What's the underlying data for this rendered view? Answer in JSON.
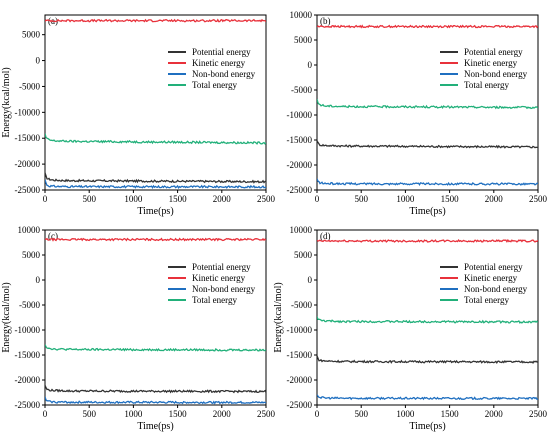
{
  "figure": {
    "panels": [
      {
        "id": "a",
        "label": "(a)"
      },
      {
        "id": "b",
        "label": "(b)"
      },
      {
        "id": "c",
        "label": "(c)"
      },
      {
        "id": "d",
        "label": "(d)"
      }
    ]
  },
  "chart_data": [
    {
      "type": "line",
      "panel": "(a)",
      "xlabel": "Time(ps)",
      "ylabel": "Energy(kcal/mol)",
      "xlim": [
        0,
        2500
      ],
      "ylim": [
        -25000,
        8800
      ],
      "xticks": [
        "0",
        "500",
        "1000",
        "1500",
        "2000",
        "2500"
      ],
      "yticks": [
        "-25000",
        "-20000",
        "-15000",
        "-10000",
        "-5000",
        "0",
        "5000"
      ],
      "ytick_values": [
        -25000,
        -20000,
        -15000,
        -10000,
        -5000,
        0,
        5000
      ],
      "legend_position": "right-middle",
      "series": [
        {
          "name": "Potential energy",
          "color": "#333333",
          "x": [
            0,
            15,
            40,
            100,
            300,
            2500
          ],
          "y": [
            -21800,
            -22600,
            -22900,
            -23100,
            -23200,
            -23400
          ]
        },
        {
          "name": "Kinetic energy",
          "color": "#e8313b",
          "x": [
            0,
            2500
          ],
          "y": [
            7700,
            7700
          ]
        },
        {
          "name": "Non-bond energy",
          "color": "#1f6fc0",
          "x": [
            0,
            15,
            40,
            100,
            300,
            2500
          ],
          "y": [
            -23000,
            -23900,
            -24200,
            -24300,
            -24350,
            -24400
          ]
        },
        {
          "name": "Total energy",
          "color": "#22b07a",
          "x": [
            0,
            15,
            40,
            100,
            300,
            2500
          ],
          "y": [
            -14200,
            -15000,
            -15300,
            -15500,
            -15600,
            -15900
          ]
        }
      ]
    },
    {
      "type": "line",
      "panel": "(b)",
      "xlabel": "Time(ps)",
      "ylabel": "",
      "xlim": [
        0,
        2500
      ],
      "ylim": [
        -25000,
        10000
      ],
      "xticks": [
        "0",
        "500",
        "1000",
        "1500",
        "2000",
        "2500"
      ],
      "yticks": [
        "-25000",
        "-20000",
        "-15000",
        "-10000",
        "-5000",
        "0",
        "5000",
        "10000"
      ],
      "ytick_values": [
        -25000,
        -20000,
        -15000,
        -10000,
        -5000,
        0,
        5000,
        10000
      ],
      "legend_position": "right-middle",
      "series": [
        {
          "name": "Potential energy",
          "color": "#333333",
          "x": [
            0,
            15,
            40,
            100,
            300,
            2500
          ],
          "y": [
            -15000,
            -15800,
            -16000,
            -16100,
            -16200,
            -16400
          ]
        },
        {
          "name": "Kinetic energy",
          "color": "#e8313b",
          "x": [
            0,
            2500
          ],
          "y": [
            7700,
            7700
          ]
        },
        {
          "name": "Non-bond energy",
          "color": "#1f6fc0",
          "x": [
            0,
            15,
            40,
            100,
            300,
            2500
          ],
          "y": [
            -22800,
            -23400,
            -23600,
            -23700,
            -23750,
            -23800
          ]
        },
        {
          "name": "Total energy",
          "color": "#22b07a",
          "x": [
            0,
            15,
            40,
            100,
            300,
            2500
          ],
          "y": [
            -7000,
            -7700,
            -8000,
            -8200,
            -8300,
            -8500
          ]
        }
      ]
    },
    {
      "type": "line",
      "panel": "(c)",
      "xlabel": "Time(ps)",
      "ylabel": "Energy(kcal/mol)",
      "xlim": [
        0,
        2500
      ],
      "ylim": [
        -25000,
        10000
      ],
      "xticks": [
        "0",
        "500",
        "1000",
        "1500",
        "2000",
        "2500"
      ],
      "yticks": [
        "-25000",
        "-20000",
        "-15000",
        "-10000",
        "-5000",
        "0",
        "5000",
        "10000"
      ],
      "ytick_values": [
        -25000,
        -20000,
        -15000,
        -10000,
        -5000,
        0,
        5000,
        10000
      ],
      "legend_position": "right-middle",
      "series": [
        {
          "name": "Potential energy",
          "color": "#333333",
          "x": [
            0,
            15,
            40,
            100,
            300,
            2500
          ],
          "y": [
            -21000,
            -21800,
            -22000,
            -22100,
            -22200,
            -22300
          ]
        },
        {
          "name": "Kinetic energy",
          "color": "#e8313b",
          "x": [
            0,
            2500
          ],
          "y": [
            8100,
            8100
          ]
        },
        {
          "name": "Non-bond energy",
          "color": "#1f6fc0",
          "x": [
            0,
            15,
            40,
            100,
            300,
            2500
          ],
          "y": [
            -23500,
            -24100,
            -24300,
            -24400,
            -24450,
            -24500
          ]
        },
        {
          "name": "Total energy",
          "color": "#22b07a",
          "x": [
            0,
            15,
            40,
            100,
            300,
            2500
          ],
          "y": [
            -12800,
            -13400,
            -13600,
            -13800,
            -13900,
            -14000
          ]
        }
      ]
    },
    {
      "type": "line",
      "panel": "(d)",
      "xlabel": "Time(ps)",
      "ylabel": "Energy(kcal/mol)",
      "xlim": [
        0,
        2500
      ],
      "ylim": [
        -25000,
        10000
      ],
      "xticks": [
        "0",
        "500",
        "1000",
        "1500",
        "2000",
        "2500"
      ],
      "yticks": [
        "-25000",
        "-20000",
        "-15000",
        "-10000",
        "-5000",
        "0",
        "5000",
        "10000"
      ],
      "ytick_values": [
        -25000,
        -20000,
        -15000,
        -10000,
        -5000,
        0,
        5000,
        10000
      ],
      "legend_position": "right-middle",
      "series": [
        {
          "name": "Potential energy",
          "color": "#333333",
          "x": [
            0,
            15,
            40,
            100,
            300,
            2500
          ],
          "y": [
            -15200,
            -15900,
            -16100,
            -16200,
            -16300,
            -16400
          ]
        },
        {
          "name": "Kinetic energy",
          "color": "#e8313b",
          "x": [
            0,
            2500
          ],
          "y": [
            7800,
            7800
          ]
        },
        {
          "name": "Non-bond energy",
          "color": "#1f6fc0",
          "x": [
            0,
            15,
            40,
            100,
            300,
            2500
          ],
          "y": [
            -22800,
            -23300,
            -23500,
            -23600,
            -23650,
            -23700
          ]
        },
        {
          "name": "Total energy",
          "color": "#22b07a",
          "x": [
            0,
            15,
            40,
            100,
            300,
            2500
          ],
          "y": [
            -7300,
            -7900,
            -8100,
            -8200,
            -8300,
            -8400
          ]
        }
      ]
    }
  ]
}
